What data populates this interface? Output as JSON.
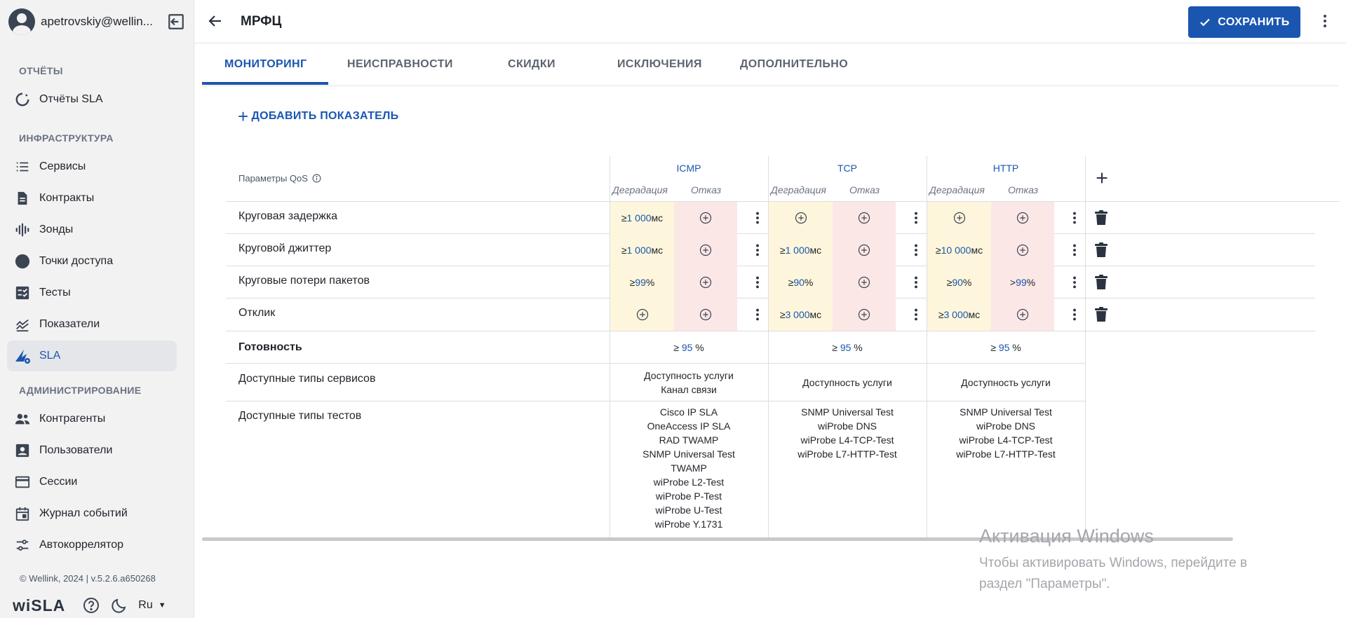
{
  "sidebar": {
    "user": "apetrovskiy@wellin...",
    "sections": {
      "reports": "ОТЧЁТЫ",
      "infrastructure": "ИНФРАСТРУКТУРА",
      "admin": "АДМИНИСТРИРОВАНИЕ"
    },
    "items": [
      {
        "label": "Отчёты SLA",
        "icon": "sla-report-icon"
      },
      {
        "label": "Сервисы",
        "icon": "list-icon"
      },
      {
        "label": "Контракты",
        "icon": "document-icon"
      },
      {
        "label": "Зонды",
        "icon": "probe-icon"
      },
      {
        "label": "Точки доступа",
        "icon": "access-point-icon"
      },
      {
        "label": "Тесты",
        "icon": "checklist-icon"
      },
      {
        "label": "Показатели",
        "icon": "chart-icon"
      },
      {
        "label": "SLA",
        "icon": "sla-icon",
        "active": true
      },
      {
        "label": "Контрагенты",
        "icon": "people-icon"
      },
      {
        "label": "Пользователи",
        "icon": "user-card-icon"
      },
      {
        "label": "Сессии",
        "icon": "window-icon"
      },
      {
        "label": "Журнал событий",
        "icon": "calendar-icon"
      },
      {
        "label": "Автокоррелятор",
        "icon": "sliders-icon"
      }
    ],
    "footer": {
      "copyright": "© Wellink, 2024 | v.5.2.6.a650268",
      "brand": "wiSLA",
      "lang": "Ru"
    }
  },
  "header": {
    "title": "МРФЦ",
    "save_label": "СОХРАНИТЬ"
  },
  "tabs": [
    "МОНИТОРИНГ",
    "НЕИСПРАВНОСТИ",
    "СКИДКИ",
    "ИСКЛЮЧЕНИЯ",
    "ДОПОЛНИТЕЛЬНО"
  ],
  "add_metric_label": "ДОБАВИТЬ ПОКАЗАТЕЛЬ",
  "table": {
    "qos_header": "Параметры QoS",
    "protocols": [
      "ICMP",
      "TCP",
      "HTTP"
    ],
    "sub_headers": {
      "degradation": "Деградация",
      "failure": "Отказ"
    },
    "rows": [
      {
        "label": "Круговая задержка",
        "cells": [
          {
            "deg": {
              "op": "≥",
              "num": "1 000",
              "unit": "мс"
            },
            "fail": null
          },
          {
            "deg": null,
            "fail": null
          },
          {
            "deg": null,
            "fail": null
          }
        ]
      },
      {
        "label": "Круговой джиттер",
        "cells": [
          {
            "deg": {
              "op": "≥",
              "num": "1 000",
              "unit": "мс"
            },
            "fail": null
          },
          {
            "deg": {
              "op": "≥",
              "num": "1 000",
              "unit": "мс"
            },
            "fail": null
          },
          {
            "deg": {
              "op": "≥",
              "num": "10 000",
              "unit": "мс"
            },
            "fail": null
          }
        ]
      },
      {
        "label": "Круговые потери пакетов",
        "cells": [
          {
            "deg": {
              "op": "≥",
              "num": "99",
              "unit": "%"
            },
            "fail": null
          },
          {
            "deg": {
              "op": "≥",
              "num": "90",
              "unit": "%"
            },
            "fail": null
          },
          {
            "deg": {
              "op": "≥",
              "num": "90",
              "unit": "%"
            },
            "fail": {
              "op": ">",
              "num": "99",
              "unit": "%"
            }
          }
        ]
      },
      {
        "label": "Отклик",
        "cells": [
          {
            "deg": null,
            "fail": null
          },
          {
            "deg": {
              "op": "≥",
              "num": "3 000",
              "unit": "мс"
            },
            "fail": null
          },
          {
            "deg": {
              "op": "≥",
              "num": "3 000",
              "unit": "мс"
            },
            "fail": null
          }
        ]
      }
    ],
    "readiness": {
      "label": "Готовность",
      "values": [
        {
          "op": "≥",
          "num": "95",
          "unit": "%"
        },
        {
          "op": "≥",
          "num": "95",
          "unit": "%"
        },
        {
          "op": "≥",
          "num": "95",
          "unit": "%"
        }
      ]
    },
    "service_types": {
      "label": "Доступные типы сервисов",
      "values": [
        [
          "Доступность услуги",
          "Канал связи"
        ],
        [
          "Доступность услуги"
        ],
        [
          "Доступность услуги"
        ]
      ]
    },
    "test_types": {
      "label": "Доступные типы тестов",
      "values": [
        [
          "Cisco IP SLA",
          "OneAccess IP SLA",
          "RAD TWAMP",
          "SNMP Universal Test",
          "TWAMP",
          "wiProbe L2-Test",
          "wiProbe P-Test",
          "wiProbe U-Test",
          "wiProbe Y.1731"
        ],
        [
          "SNMP Universal Test",
          "wiProbe DNS",
          "wiProbe L4-TCP-Test",
          "wiProbe L7-HTTP-Test"
        ],
        [
          "SNMP Universal Test",
          "wiProbe DNS",
          "wiProbe L4-TCP-Test",
          "wiProbe L7-HTTP-Test"
        ]
      ]
    }
  },
  "watermark": {
    "line1": "Активация Windows",
    "line2": "Чтобы активировать Windows, перейдите в",
    "line3": "раздел \"Параметры\"."
  },
  "colors": {
    "accent": "#1a56b0",
    "degradation_bg": "#fdf6dc",
    "failure_bg": "#fce7e7"
  }
}
